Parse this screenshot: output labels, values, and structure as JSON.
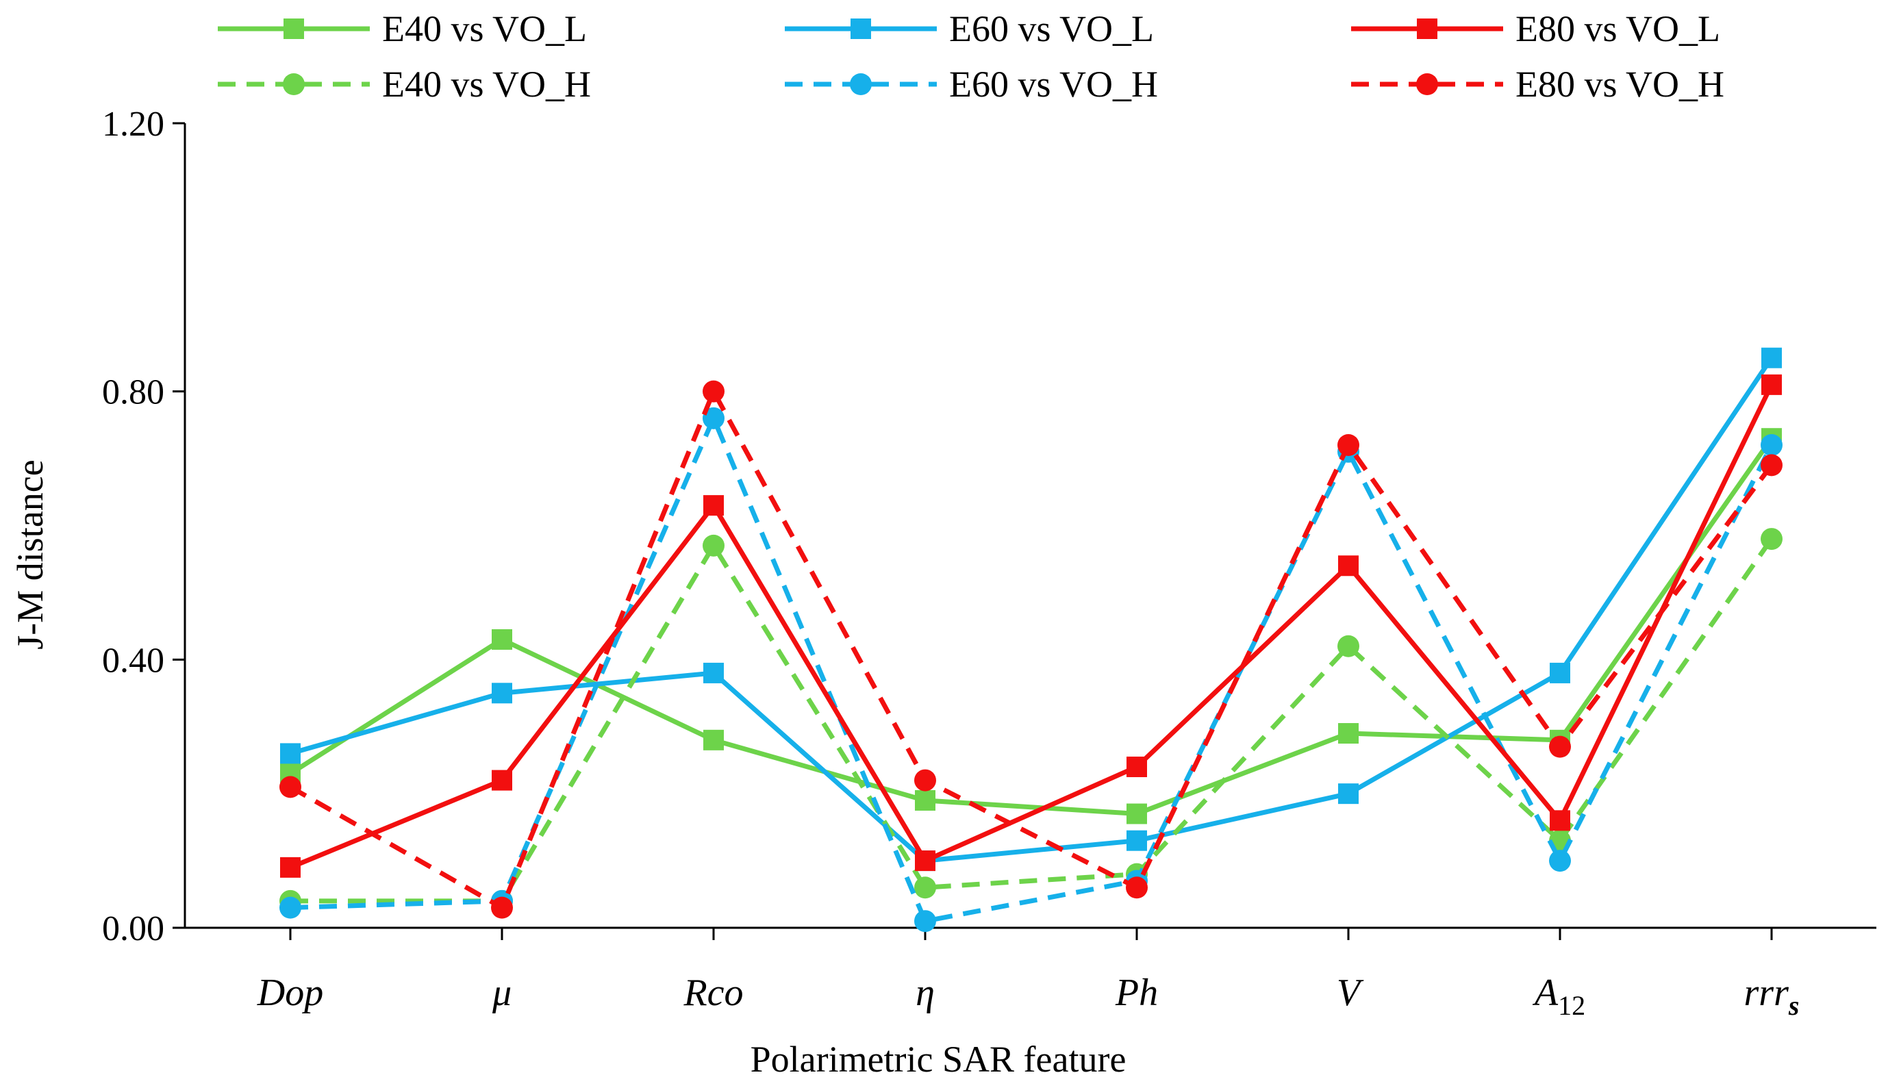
{
  "chart_data": {
    "type": "line",
    "title": "",
    "xlabel": "Polarimetric SAR feature",
    "ylabel": "J-M distance",
    "ylim": [
      0,
      1.2
    ],
    "yticks": [
      "0.00",
      "0.40",
      "0.80",
      "1.20"
    ],
    "grid": false,
    "legend_position": "top",
    "categories": [
      {
        "base": "Dop",
        "sub": ""
      },
      {
        "base": "μ",
        "sub": ""
      },
      {
        "base": "Rco",
        "sub": ""
      },
      {
        "base": "η",
        "sub": ""
      },
      {
        "base": "Ph",
        "sub": ""
      },
      {
        "base": "V",
        "sub": ""
      },
      {
        "base": "A",
        "sub": "12"
      },
      {
        "base": "rrr",
        "sub": "s"
      }
    ],
    "series": [
      {
        "name": "E40 vs VO_L",
        "color": "#6dd34a",
        "dash": "solid",
        "marker": "square",
        "values": [
          0.23,
          0.43,
          0.28,
          0.19,
          0.17,
          0.29,
          0.28,
          0.73
        ]
      },
      {
        "name": "E60 vs VO_L",
        "color": "#16b0ea",
        "dash": "solid",
        "marker": "square",
        "values": [
          0.26,
          0.35,
          0.38,
          0.1,
          0.13,
          0.2,
          0.38,
          0.85
        ]
      },
      {
        "name": "E80 vs VO_L",
        "color": "#f20f0f",
        "dash": "solid",
        "marker": "square",
        "values": [
          0.09,
          0.22,
          0.63,
          0.1,
          0.24,
          0.54,
          0.16,
          0.81
        ]
      },
      {
        "name": "E40 vs VO_H",
        "color": "#6dd34a",
        "dash": "dashed",
        "marker": "circle",
        "values": [
          0.04,
          0.04,
          0.57,
          0.06,
          0.08,
          0.42,
          0.13,
          0.58
        ]
      },
      {
        "name": "E60 vs VO_H",
        "color": "#16b0ea",
        "dash": "dashed",
        "marker": "circle",
        "values": [
          0.03,
          0.04,
          0.76,
          0.01,
          0.07,
          0.71,
          0.1,
          0.72
        ]
      },
      {
        "name": "E80 vs VO_H",
        "color": "#f20f0f",
        "dash": "dashed",
        "marker": "circle",
        "values": [
          0.21,
          0.03,
          0.8,
          0.22,
          0.06,
          0.72,
          0.27,
          0.69
        ]
      }
    ]
  }
}
